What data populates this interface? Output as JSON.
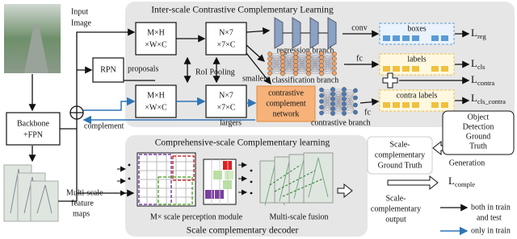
{
  "input_label": [
    "Input",
    "Image"
  ],
  "backbone": [
    "Backbone",
    "+FPN"
  ],
  "feature_maps": [
    "Multi-scale",
    "feature",
    "maps"
  ],
  "complement": "complement",
  "rpn": "RPN",
  "proposals": "proposals",
  "roi_pooling": "RoI Pooling",
  "inter_scale": {
    "title": "Inter-scale Contrastive Complementary Learning",
    "roi_small": [
      "M×H",
      "×W×C"
    ],
    "pooled_small": [
      "N×7",
      "×7×C"
    ],
    "roi_large": [
      "M×H",
      "×W×C"
    ],
    "pooled_large": [
      "N×7",
      "×7×C"
    ],
    "smallers": "smallers",
    "largers": "largers",
    "regression": {
      "branch": "regression branch",
      "layer": "conv",
      "output": "boxes",
      "loss": {
        "base": "L",
        "sub": "reg"
      }
    },
    "classification": {
      "branch": "classification branch",
      "layer": "fc",
      "output": "labels",
      "loss": {
        "base": "L",
        "sub": "cls"
      }
    },
    "contrastive_loss": {
      "base": "L",
      "sub": "contra"
    },
    "contrastive": {
      "network": [
        "contrastive",
        "complement",
        "network"
      ],
      "branch": "contrastive branch",
      "layer": "fc",
      "output": "contra labels",
      "loss": {
        "base": "L",
        "sub": "cls_contra"
      }
    }
  },
  "comprehensive_scale": {
    "title": "Comprehensive-scale Complementary learning",
    "perception": "M× scale perception module",
    "fusion": "Multi-scale fusion",
    "decoder": "Scale complementary decoder"
  },
  "ground_truth": [
    "Object",
    "Detection",
    "Ground",
    "Truth"
  ],
  "scale_gt": [
    "Scale-",
    "complementary",
    "Ground Truth"
  ],
  "generation": "Generation",
  "comple_loss": {
    "base": "L",
    "sub": "comple"
  },
  "scale_output": [
    "Scale-",
    "complementary",
    "output"
  ],
  "legend": {
    "train_test": [
      "both in train",
      "and test"
    ],
    "train_only": "only in train"
  }
}
